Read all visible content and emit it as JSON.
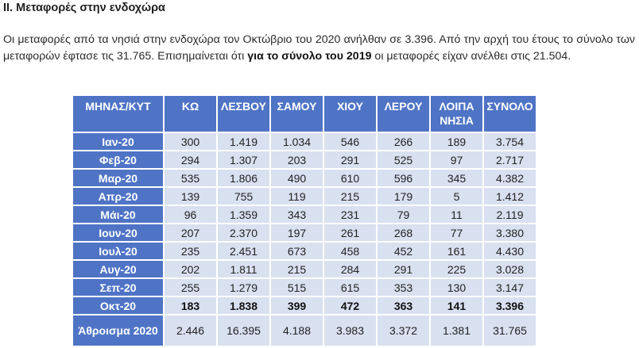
{
  "heading": "ΙΙ. Μεταφορές στην ενδοχώρα",
  "paragraph": {
    "part1": "Οι μεταφορές από τα νησιά στην ενδοχώρα τον Οκτώβριο του 2020 ανήλθαν σε 3.396. Από την αρχή του έτους το σύνολο των μεταφορών έφτασε τις 31.765. Επισημαίνεται ότι ",
    "bold": "για το σύνολο του 2019",
    "part2": " οι μεταφορές είχαν ανέλθει στις 21.504."
  },
  "table": {
    "headers": [
      "ΜΗΝΑΣ/ΚΥΤ",
      "ΚΩ",
      "ΛΕΣΒΟΥ",
      "ΣΑΜΟΥ",
      "ΧΙΟΥ",
      "ΛΕΡΟΥ",
      "ΛΟΙΠΑ ΝΗΣΙΑ",
      "ΣΥΝΟΛΟ"
    ],
    "rows": [
      {
        "month": "Ιαν-20",
        "values": [
          "300",
          "1.419",
          "1.034",
          "546",
          "266",
          "189",
          "3.754"
        ]
      },
      {
        "month": "Φεβ-20",
        "values": [
          "294",
          "1.307",
          "203",
          "291",
          "525",
          "97",
          "2.717"
        ]
      },
      {
        "month": "Μαρ-20",
        "values": [
          "535",
          "1.806",
          "490",
          "610",
          "596",
          "345",
          "4.382"
        ]
      },
      {
        "month": "Απρ-20",
        "values": [
          "139",
          "755",
          "119",
          "215",
          "179",
          "5",
          "1.412"
        ]
      },
      {
        "month": "Μάι-20",
        "values": [
          "96",
          "1.359",
          "343",
          "231",
          "79",
          "11",
          "2.119"
        ]
      },
      {
        "month": "Ιουν-20",
        "values": [
          "207",
          "2.370",
          "197",
          "261",
          "268",
          "77",
          "3.380"
        ]
      },
      {
        "month": "Ιουλ-20",
        "values": [
          "235",
          "2.451",
          "673",
          "458",
          "452",
          "161",
          "4.430"
        ]
      },
      {
        "month": "Αυγ-20",
        "values": [
          "202",
          "1.811",
          "215",
          "284",
          "291",
          "225",
          "3.028"
        ]
      },
      {
        "month": "Σεπ-20",
        "values": [
          "255",
          "1.279",
          "515",
          "615",
          "353",
          "130",
          "3.147"
        ]
      },
      {
        "month": "Οκτ-20",
        "values": [
          "183",
          "1.838",
          "399",
          "472",
          "363",
          "141",
          "3.396"
        ]
      }
    ],
    "total": {
      "label": "Άθροισμα 2020",
      "values": [
        "2.446",
        "16.395",
        "4.188",
        "3.983",
        "3.372",
        "1.381",
        "31.765"
      ]
    }
  }
}
